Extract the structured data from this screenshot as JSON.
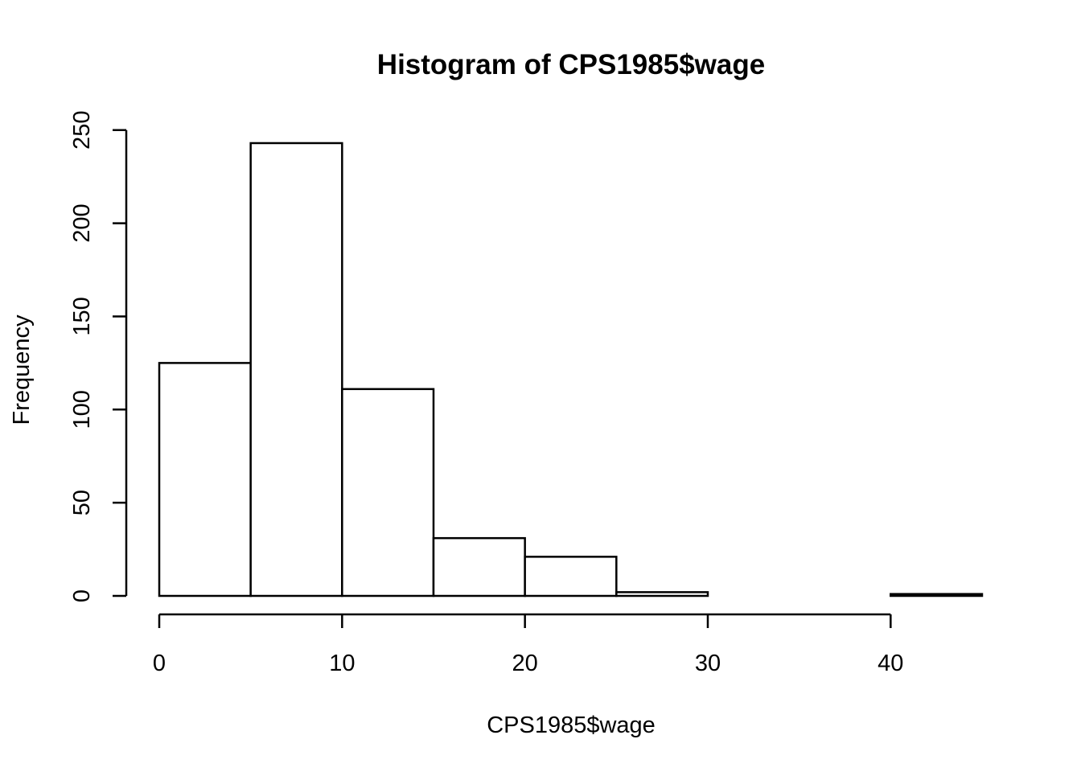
{
  "chart_data": {
    "type": "bar",
    "subtype": "histogram",
    "title": "Histogram of CPS1985$wage",
    "xlabel": "CPS1985$wage",
    "ylabel": "Frequency",
    "bins": [
      {
        "start": 0,
        "end": 5,
        "count": 125
      },
      {
        "start": 5,
        "end": 10,
        "count": 243
      },
      {
        "start": 10,
        "end": 15,
        "count": 111
      },
      {
        "start": 15,
        "end": 20,
        "count": 31
      },
      {
        "start": 20,
        "end": 25,
        "count": 21
      },
      {
        "start": 25,
        "end": 30,
        "count": 2
      },
      {
        "start": 30,
        "end": 35,
        "count": 0
      },
      {
        "start": 35,
        "end": 40,
        "count": 0
      },
      {
        "start": 40,
        "end": 45,
        "count": 1
      }
    ],
    "xlim": [
      0,
      45
    ],
    "ylim": [
      0,
      250
    ],
    "xticks": [
      "0",
      "10",
      "20",
      "30",
      "40"
    ],
    "yticks": [
      "0",
      "50",
      "100",
      "150",
      "200",
      "250"
    ],
    "grid": false,
    "bar_fill": "#ffffff",
    "bar_stroke": "#000000"
  }
}
